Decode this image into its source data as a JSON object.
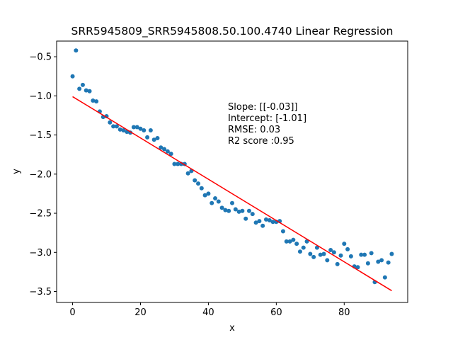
{
  "chart_data": {
    "type": "scatter",
    "title": "SRR5945809_SRR5945808.50.100.4740 Linear Regression",
    "xlabel": "x",
    "ylabel": "y",
    "xlim": [
      -4.7,
      98.7
    ],
    "ylim": [
      -3.64,
      -0.3
    ],
    "xticks": [
      0,
      20,
      40,
      60,
      80
    ],
    "xtick_labels": [
      "0",
      "20",
      "40",
      "60",
      "80"
    ],
    "yticks": [
      -0.5,
      -1.0,
      -1.5,
      -2.0,
      -2.5,
      -3.0,
      -3.5
    ],
    "ytick_labels": [
      "−0.5",
      "−1.0",
      "−1.5",
      "−2.0",
      "−2.5",
      "−3.0",
      "−3.5"
    ],
    "grid": false,
    "annotations": [
      "Slope: [[-0.03]]",
      "Intercept: [-1.01]",
      "RMSE: 0.03",
      "R2 score :0.95"
    ],
    "series": [
      {
        "kind": "scatter",
        "color": "#1f77b4",
        "x": [
          0,
          1,
          2,
          3,
          4,
          5,
          6,
          7,
          8,
          9,
          10,
          11,
          12,
          13,
          14,
          15,
          16,
          17,
          18,
          19,
          20,
          21,
          22,
          23,
          24,
          25,
          26,
          27,
          28,
          29,
          30,
          31,
          32,
          33,
          34,
          35,
          36,
          37,
          38,
          39,
          40,
          41,
          42,
          43,
          44,
          45,
          46,
          47,
          48,
          49,
          50,
          51,
          52,
          53,
          54,
          55,
          56,
          57,
          58,
          59,
          60,
          61,
          62,
          63,
          64,
          65,
          66,
          67,
          68,
          69,
          70,
          71,
          72,
          73,
          74,
          75,
          76,
          77,
          78,
          79,
          80,
          81,
          82,
          83,
          84,
          85,
          86,
          87,
          88,
          89,
          90,
          91,
          92,
          93,
          94
        ],
        "y": [
          -0.75,
          -0.42,
          -0.91,
          -0.86,
          -0.93,
          -0.94,
          -1.06,
          -1.07,
          -1.2,
          -1.27,
          -1.26,
          -1.34,
          -1.39,
          -1.39,
          -1.43,
          -1.44,
          -1.46,
          -1.47,
          -1.4,
          -1.4,
          -1.42,
          -1.44,
          -1.53,
          -1.44,
          -1.56,
          -1.54,
          -1.66,
          -1.68,
          -1.71,
          -1.74,
          -1.87,
          -1.87,
          -1.87,
          -1.87,
          -1.99,
          -1.96,
          -2.08,
          -2.12,
          -2.18,
          -2.27,
          -2.25,
          -2.37,
          -2.31,
          -2.35,
          -2.43,
          -2.46,
          -2.47,
          -2.37,
          -2.45,
          -2.48,
          -2.47,
          -2.57,
          -2.47,
          -2.51,
          -2.62,
          -2.6,
          -2.66,
          -2.58,
          -2.59,
          -2.61,
          -2.61,
          -2.6,
          -2.73,
          -2.86,
          -2.86,
          -2.84,
          -2.89,
          -2.99,
          -2.94,
          -2.86,
          -3.02,
          -3.06,
          -2.94,
          -3.03,
          -3.02,
          -3.1,
          -2.97,
          -3.0,
          -3.15,
          -3.04,
          -2.89,
          -2.96,
          -3.05,
          -3.18,
          -3.19,
          -3.03,
          -3.03,
          -3.14,
          -3.01,
          -3.38,
          -3.12,
          -3.1,
          -3.32,
          -3.13,
          -3.02
        ]
      },
      {
        "kind": "line",
        "name": "fit",
        "color": "#ff0000",
        "x": [
          0,
          94
        ],
        "y": [
          -1.01,
          -3.49
        ]
      }
    ]
  }
}
